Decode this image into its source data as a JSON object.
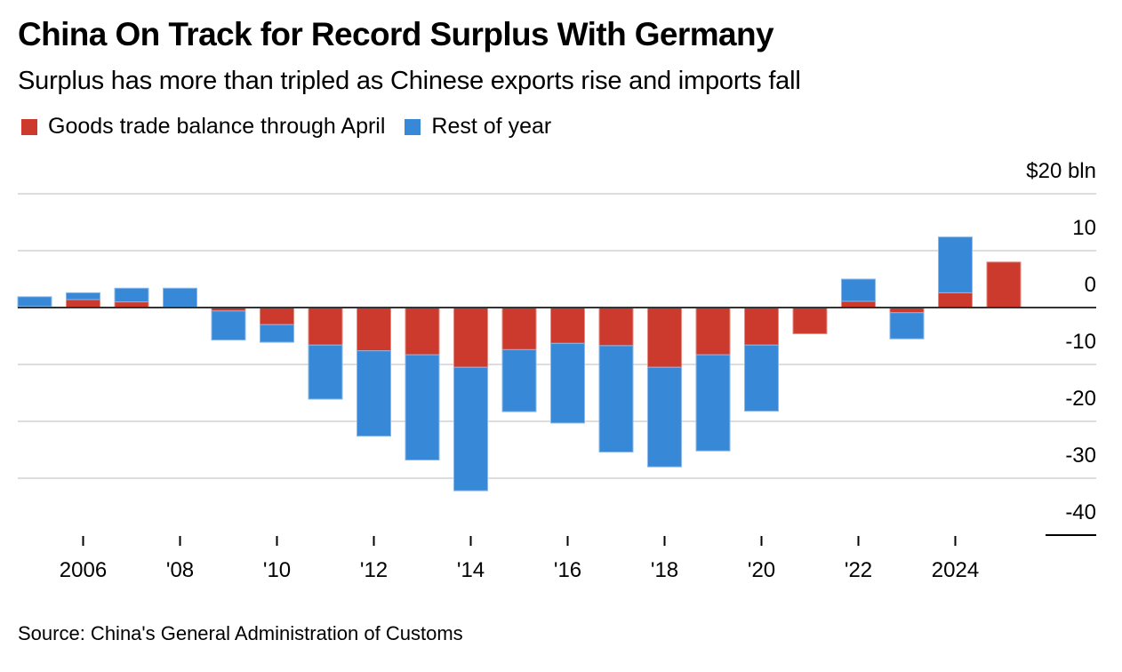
{
  "header": {
    "title": "China On Track for Record Surplus With Germany",
    "subtitle": "Surplus has more than tripled as Chinese exports rise and imports fall"
  },
  "legend": [
    {
      "label": "Goods trade balance through April",
      "color": "#CB3A2D"
    },
    {
      "label": "Rest of year",
      "color": "#3888D8"
    }
  ],
  "source": "Source: China's General Administration of Customs",
  "chart_data": {
    "type": "bar",
    "stacked": true,
    "title": "China On Track for Record Surplus With Germany",
    "subtitle": "Surplus has more than tripled as Chinese exports rise and imports fall",
    "xlabel": "",
    "ylabel": "$ bln",
    "unit_label": "$20 bln",
    "ylim": [
      -40,
      20
    ],
    "yticks": [
      20,
      10,
      0,
      -10,
      -20,
      -30,
      -40
    ],
    "ytick_labels": [
      "$20 bln",
      "10",
      "0",
      "-10",
      "-20",
      "-30",
      "-40"
    ],
    "grid": true,
    "legend_position": "top-left",
    "categories": [
      "2005",
      "2006",
      "2007",
      "2008",
      "2009",
      "2010",
      "2011",
      "2012",
      "2013",
      "2014",
      "2015",
      "2016",
      "2017",
      "2018",
      "2019",
      "2020",
      "2021",
      "2022",
      "2023",
      "2024",
      "2025"
    ],
    "xtick_labels": [
      {
        "category": "2006",
        "label": "2006"
      },
      {
        "category": "2008",
        "label": "'08"
      },
      {
        "category": "2010",
        "label": "'10"
      },
      {
        "category": "2012",
        "label": "'12"
      },
      {
        "category": "2014",
        "label": "'14"
      },
      {
        "category": "2016",
        "label": "'16"
      },
      {
        "category": "2018",
        "label": "'18"
      },
      {
        "category": "2020",
        "label": "'20"
      },
      {
        "category": "2022",
        "label": "'22"
      },
      {
        "category": "2024",
        "label": "2024"
      }
    ],
    "series": [
      {
        "name": "Goods trade balance through April",
        "color": "#CB3A2D",
        "values": [
          0.2,
          1.4,
          1.0,
          0.1,
          -0.6,
          -3.0,
          -6.6,
          -7.6,
          -8.3,
          -10.5,
          -7.4,
          -6.3,
          -6.7,
          -10.5,
          -8.3,
          -6.6,
          -4.6,
          1.1,
          -0.9,
          2.6,
          8.0
        ]
      },
      {
        "name": "Rest of year",
        "color": "#3888D8",
        "values": [
          1.7,
          1.2,
          2.4,
          3.3,
          -5.1,
          -3.1,
          -9.5,
          -15.0,
          -18.5,
          -21.7,
          -10.9,
          -14.0,
          -18.7,
          -17.5,
          -16.9,
          -11.6,
          0,
          3.9,
          -4.6,
          9.8,
          0
        ]
      }
    ]
  }
}
